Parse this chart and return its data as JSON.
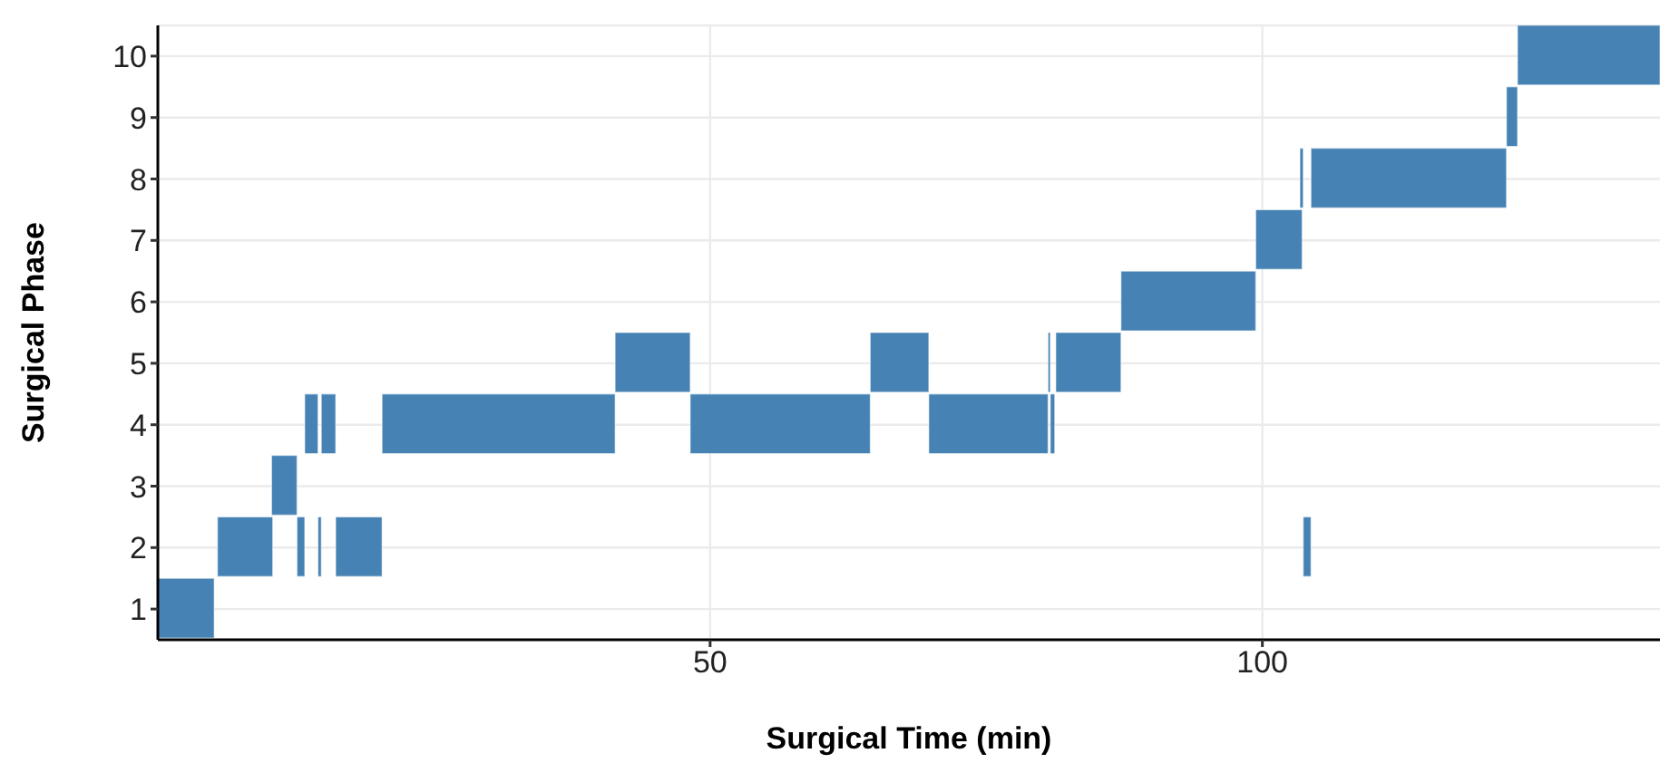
{
  "chart_data": {
    "type": "bar",
    "orientation": "horizontal",
    "xlabel": "Surgical Time (min)",
    "ylabel": "Surgical Phase",
    "categories": [
      "10",
      "9",
      "8",
      "7",
      "6",
      "5",
      "4",
      "3",
      "2",
      "1"
    ],
    "xlim": [
      0,
      136
    ],
    "xticks": [
      50,
      100
    ],
    "grid": true,
    "series": [
      {
        "color": "#4682b4",
        "base": [
          123.1,
          122.1,
          103.4,
          99.4,
          87.2,
          41.4,
          13.3,
          10.3,
          5.4,
          0
        ],
        "values": [
          12.9,
          1.0,
          0.3,
          4.2,
          12.2,
          6.8,
          1.2,
          2.3,
          5.0,
          5.1
        ]
      },
      {
        "color": "#4682b4",
        "base": [
          null,
          null,
          104.4,
          null,
          null,
          64.5,
          14.8,
          null,
          12.6,
          null
        ],
        "values": [
          null,
          null,
          17.7,
          null,
          null,
          5.3,
          1.3,
          null,
          0.7,
          null
        ]
      },
      {
        "color": "#4682b4",
        "base": [
          null,
          null,
          null,
          null,
          null,
          80.6,
          20.3,
          null,
          14.5,
          null
        ],
        "values": [
          null,
          null,
          null,
          null,
          null,
          0.2,
          21.1,
          null,
          0.3,
          null
        ]
      },
      {
        "color": "#4682b4",
        "base": [
          null,
          null,
          null,
          null,
          null,
          81.3,
          48.2,
          null,
          16.1,
          null
        ],
        "values": [
          null,
          null,
          null,
          null,
          null,
          5.9,
          16.3,
          null,
          4.2,
          null
        ]
      },
      {
        "color": "#4682b4",
        "base": [
          null,
          null,
          null,
          null,
          null,
          null,
          69.8,
          null,
          103.7,
          null
        ],
        "values": [
          null,
          null,
          null,
          null,
          null,
          null,
          10.8,
          null,
          0.7,
          null
        ]
      },
      {
        "color": "#4682b4",
        "base": [
          null,
          null,
          null,
          null,
          null,
          null,
          80.8,
          null,
          null,
          null
        ],
        "values": [
          null,
          null,
          null,
          null,
          null,
          null,
          0.4,
          null,
          null,
          null
        ]
      }
    ]
  }
}
